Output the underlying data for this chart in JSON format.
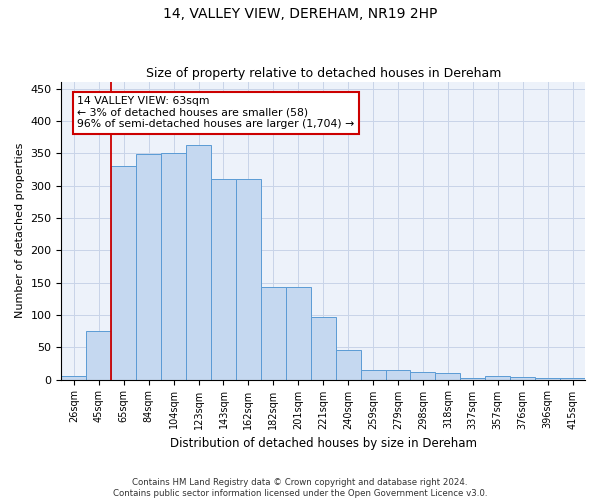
{
  "title": "14, VALLEY VIEW, DEREHAM, NR19 2HP",
  "subtitle": "Size of property relative to detached houses in Dereham",
  "xlabel": "Distribution of detached houses by size in Dereham",
  "ylabel": "Number of detached properties",
  "footer_line1": "Contains HM Land Registry data © Crown copyright and database right 2024.",
  "footer_line2": "Contains public sector information licensed under the Open Government Licence v3.0.",
  "categories": [
    "26sqm",
    "45sqm",
    "65sqm",
    "84sqm",
    "104sqm",
    "123sqm",
    "143sqm",
    "162sqm",
    "182sqm",
    "201sqm",
    "221sqm",
    "240sqm",
    "259sqm",
    "279sqm",
    "298sqm",
    "318sqm",
    "337sqm",
    "357sqm",
    "376sqm",
    "396sqm",
    "415sqm"
  ],
  "values": [
    5,
    75,
    330,
    348,
    350,
    363,
    310,
    310,
    143,
    143,
    97,
    45,
    15,
    15,
    12,
    10,
    3,
    6,
    4,
    2,
    3
  ],
  "bar_color": "#c5d8f0",
  "bar_edge_color": "#5b9bd5",
  "grid_color": "#c8d4e8",
  "red_line_color": "#cc0000",
  "annotation_text_line1": "14 VALLEY VIEW: 63sqm",
  "annotation_text_line2": "← 3% of detached houses are smaller (58)",
  "annotation_text_line3": "96% of semi-detached houses are larger (1,704) →",
  "red_line_x": 2,
  "ylim": [
    0,
    460
  ],
  "yticks": [
    0,
    50,
    100,
    150,
    200,
    250,
    300,
    350,
    400,
    450
  ],
  "background_color": "#edf2fa",
  "title_fontsize": 10,
  "subtitle_fontsize": 9
}
